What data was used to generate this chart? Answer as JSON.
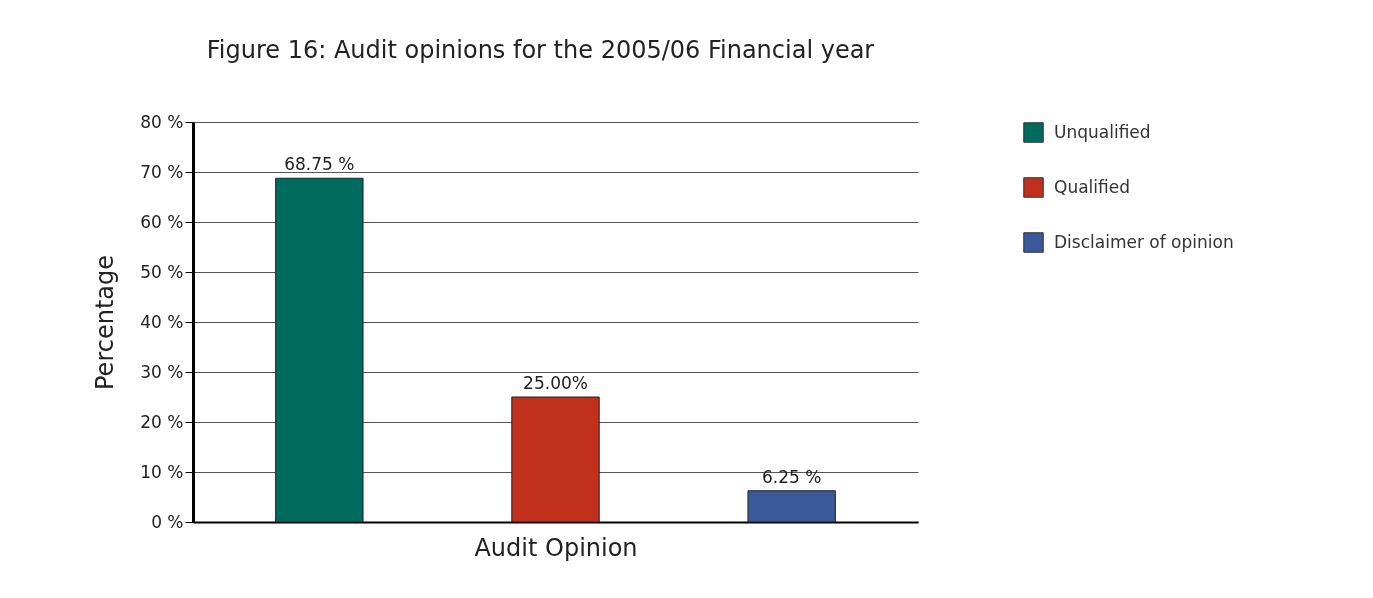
{
  "chart_data": {
    "type": "bar",
    "title": "Figure 16: Audit opinions for the 2005/06 Financial year",
    "xlabel": "Audit Opinion",
    "ylabel": "Percentage",
    "categories": [
      null,
      null,
      null
    ],
    "series": [
      {
        "name": "Unqualified",
        "color": "#006b5f",
        "values": [
          68.75,
          null,
          null
        ],
        "value_labels": [
          "68.75 %",
          null,
          null
        ]
      },
      {
        "name": "Qualified",
        "color": "#c0301c",
        "values": [
          null,
          25.0,
          null
        ],
        "value_labels": [
          null,
          "25.00%",
          null
        ]
      },
      {
        "name": "Disclaimer of opinion",
        "color": "#3b5898",
        "values": [
          null,
          null,
          6.25
        ],
        "value_labels": [
          null,
          null,
          "6.25 %"
        ]
      }
    ],
    "ylim": [
      0,
      80
    ],
    "yticks": [
      {
        "value": 0,
        "label": "0 %"
      },
      {
        "value": 10,
        "label": "10 %"
      },
      {
        "value": 20,
        "label": "20 %"
      },
      {
        "value": 30,
        "label": "30 %"
      },
      {
        "value": 40,
        "label": "40 %"
      },
      {
        "value": 50,
        "label": "50 %"
      },
      {
        "value": 60,
        "label": "60 %"
      },
      {
        "value": 70,
        "label": "70 %"
      },
      {
        "value": 80,
        "label": "80 %"
      }
    ],
    "grid": "y",
    "legend": "top right"
  }
}
